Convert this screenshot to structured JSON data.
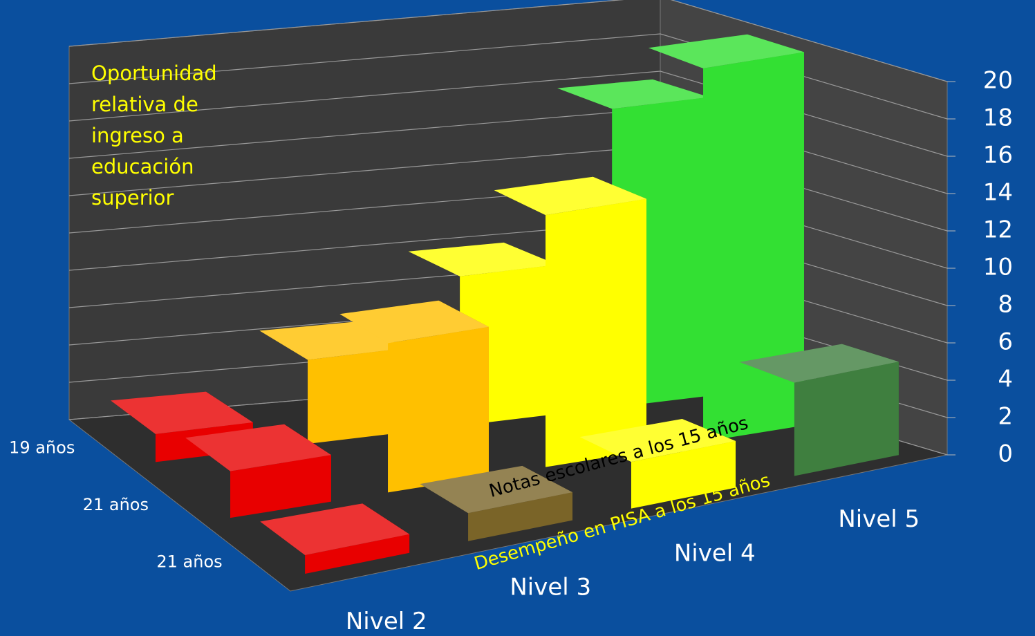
{
  "chart_data": {
    "type": "bar3d",
    "title": "Oportunidad relativa de ingreso a educación superior",
    "annotations": [
      "Notas escolares a los 15 años",
      "Desempeño en PISA a los 15 años"
    ],
    "categories": [
      "Nivel 2",
      "Nivel 3",
      "Nivel 4",
      "Nivel 5"
    ],
    "series": [
      {
        "name": "19 años",
        "colors": [
          "#e80000",
          "#ffc000",
          "#ffff00",
          "#33e033"
        ],
        "values": [
          1.5,
          4.5,
          8,
          16
        ]
      },
      {
        "name": "21 años",
        "colors": [
          "#e80000",
          "#ffc000",
          "#ffff00",
          "#33e033"
        ],
        "values": [
          2.5,
          8,
          13.5,
          20
        ]
      },
      {
        "name": "21 años",
        "colors": [
          "#e80000",
          "#7a6428",
          "#ffff00",
          "#3f7f3f"
        ],
        "values": [
          1,
          1.5,
          2.5,
          5
        ]
      }
    ],
    "ylim": [
      0,
      20
    ],
    "yticks": [
      0,
      2,
      4,
      6,
      8,
      10,
      12,
      14,
      16,
      18,
      20
    ],
    "grid": true
  }
}
